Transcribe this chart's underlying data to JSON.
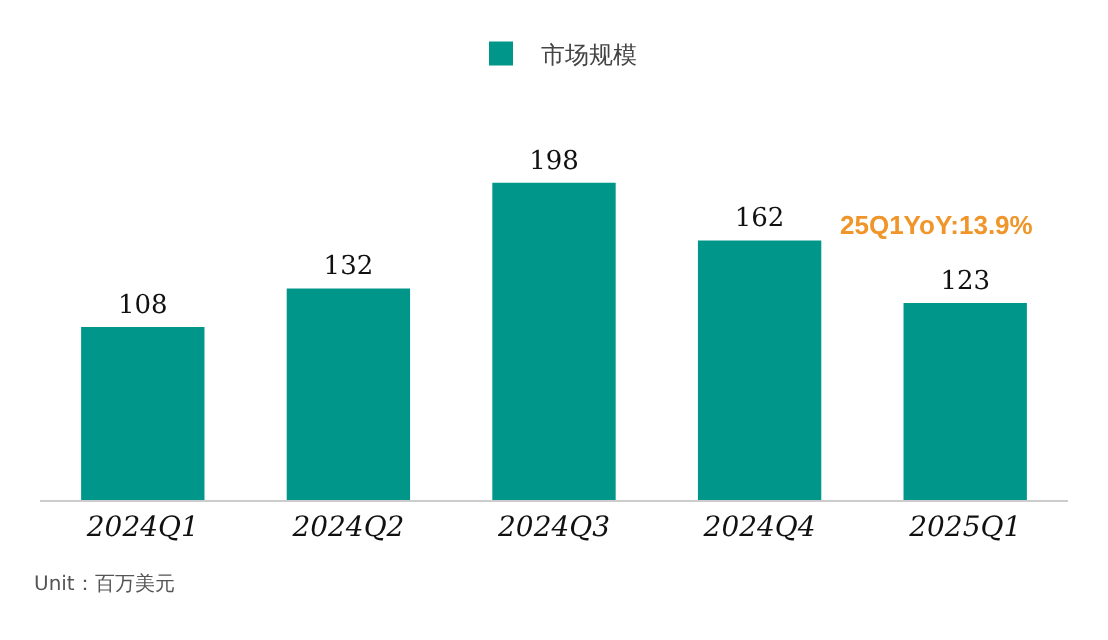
{
  "chart_data": {
    "type": "bar",
    "categories": [
      "2024Q1",
      "2024Q2",
      "2024Q3",
      "2024Q4",
      "2025Q1"
    ],
    "series": [
      {
        "name": "市场规模",
        "color": "#00968a",
        "values": [
          108,
          132,
          198,
          162,
          123
        ]
      }
    ],
    "data_labels": true,
    "legend": "top",
    "grid": false,
    "annotations": [
      "25Q1YoY:13.9%",
      "Unit：百万美元"
    ]
  }
}
